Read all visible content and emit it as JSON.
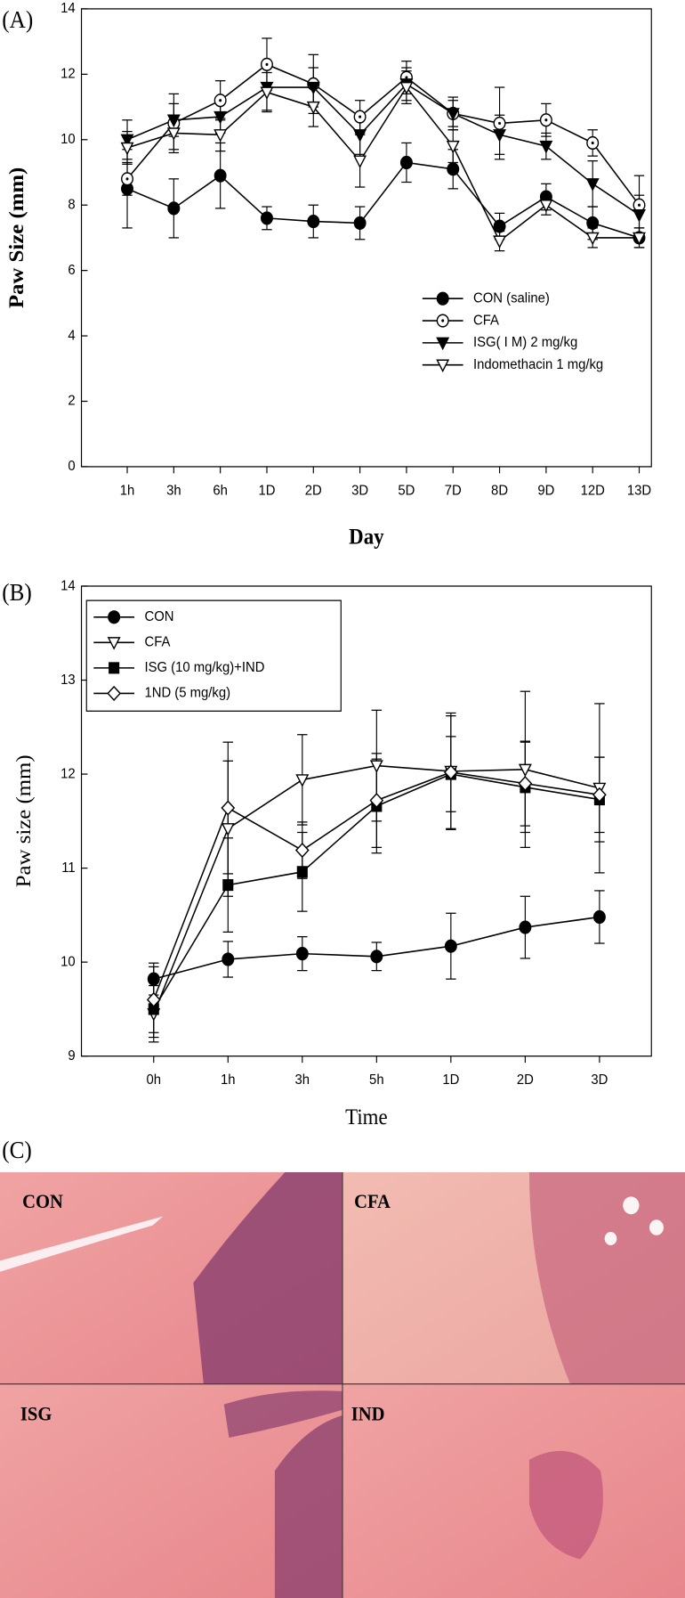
{
  "chart_data": [
    {
      "type": "line",
      "panel_label": "(A)",
      "x_label": "Day",
      "y_label": "Paw Size (mm)",
      "categories": [
        "1h",
        "3h",
        "6h",
        "1D",
        "2D",
        "3D",
        "5D",
        "7D",
        "8D",
        "9D",
        "12D",
        "13D"
      ],
      "series": [
        {
          "name": "CON (saline)",
          "marker": "filled-circle",
          "color": "#000000",
          "values": [
            8.5,
            7.9,
            8.9,
            7.6,
            7.5,
            7.45,
            9.3,
            9.1,
            7.35,
            8.25,
            7.45,
            7.0
          ],
          "errors": [
            1.2,
            0.9,
            1.0,
            0.35,
            0.5,
            0.5,
            0.6,
            0.6,
            0.4,
            0.4,
            0.5,
            0.3
          ]
        },
        {
          "name": "CFA",
          "marker": "dotted-circle",
          "color": "#000000",
          "values": [
            8.8,
            10.5,
            11.2,
            12.3,
            11.7,
            10.7,
            11.9,
            10.8,
            10.5,
            10.6,
            9.9,
            8.0
          ],
          "errors": [
            0.5,
            0.9,
            0.6,
            0.8,
            0.9,
            0.5,
            0.5,
            0.5,
            1.1,
            0.5,
            0.4,
            0.9
          ]
        },
        {
          "name": "ISG( I M) 2 mg/kg",
          "marker": "filled-triangle-down",
          "color": "#000000",
          "values": [
            10.0,
            10.6,
            10.7,
            11.6,
            11.6,
            10.15,
            11.7,
            10.8,
            10.15,
            9.8,
            8.65,
            7.7
          ],
          "errors": [
            0.6,
            0.5,
            0.5,
            0.7,
            0.6,
            0.6,
            0.5,
            0.4,
            0.6,
            0.4,
            0.7,
            0.6
          ]
        },
        {
          "name": "Indomethacin 1 mg/kg",
          "marker": "open-triangle-down",
          "color": "#000000",
          "values": [
            9.75,
            10.2,
            10.15,
            11.45,
            11.0,
            9.35,
            11.6,
            9.8,
            6.9,
            8.0,
            7.0,
            7.0
          ],
          "errors": [
            0.5,
            0.5,
            0.5,
            0.6,
            0.6,
            0.8,
            0.5,
            0.5,
            0.3,
            0.3,
            0.3,
            0.3
          ]
        }
      ],
      "ylim": [
        0,
        14
      ],
      "yticks": [
        0,
        2,
        4,
        6,
        8,
        10,
        12,
        14
      ],
      "legend": "lower right",
      "legend_frame": false,
      "label_style": "bold"
    },
    {
      "type": "line",
      "panel_label": "(B)",
      "x_label": "Time",
      "y_label": "Paw size (mm)",
      "categories": [
        "0h",
        "1h",
        "3h",
        "5h",
        "1D",
        "2D",
        "3D"
      ],
      "series": [
        {
          "name": "CON",
          "marker": "filled-circle",
          "color": "#000000",
          "values": [
            9.82,
            10.03,
            10.09,
            10.06,
            10.17,
            10.37,
            10.48
          ],
          "errors": [
            0.17,
            0.19,
            0.18,
            0.15,
            0.35,
            0.33,
            0.28
          ]
        },
        {
          "name": "CFA",
          "marker": "open-triangle-down",
          "color": "#000000",
          "values": [
            9.45,
            11.42,
            11.94,
            12.09,
            12.03,
            12.05,
            11.85
          ],
          "errors": [
            0.3,
            0.72,
            0.48,
            0.59,
            0.62,
            0.83,
            0.9
          ]
        },
        {
          "name": "ISG (10 mg/kg)+IND",
          "marker": "filled-square",
          "color": "#000000",
          "values": [
            9.5,
            10.82,
            10.96,
            11.66,
            12.0,
            11.86,
            11.73
          ],
          "errors": [
            0.3,
            0.5,
            0.42,
            0.5,
            0.4,
            0.48,
            0.45
          ]
        },
        {
          "name": "1ND (5 mg/kg)",
          "marker": "open-diamond",
          "color": "#000000",
          "values": [
            9.6,
            11.64,
            11.19,
            11.72,
            12.02,
            11.9,
            11.78
          ],
          "errors": [
            0.35,
            0.7,
            0.3,
            0.5,
            0.6,
            0.45,
            0.4
          ]
        }
      ],
      "ylim": [
        9,
        14
      ],
      "yticks": [
        9,
        10,
        11,
        12,
        13,
        14
      ],
      "legend": "upper left",
      "legend_frame": true,
      "label_style": "normal"
    }
  ],
  "figure": {
    "panel_label": "(C)",
    "micrographs": [
      "CON",
      "CFA",
      "ISG",
      "IND"
    ]
  }
}
